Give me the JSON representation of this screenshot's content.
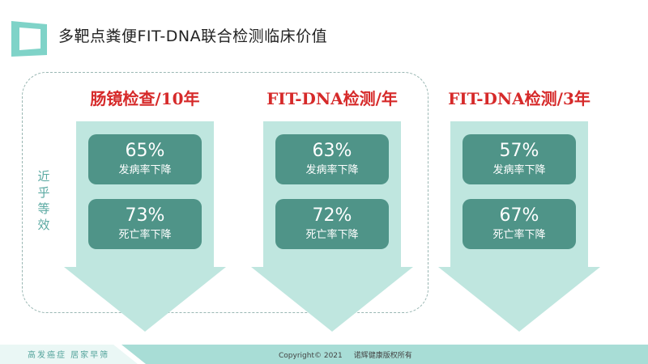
{
  "header": {
    "title": "多靶点粪便FIT-DNA联合检测临床价值"
  },
  "side_note": [
    "近",
    "乎",
    "等",
    "效"
  ],
  "columns": [
    {
      "title": "肠镜检查/10年",
      "stats": [
        {
          "value": "65%",
          "label": "发病率下降"
        },
        {
          "value": "73%",
          "label": "死亡率下降"
        }
      ]
    },
    {
      "title": "FIT-DNA检测/年",
      "stats": [
        {
          "value": "63%",
          "label": "发病率下降"
        },
        {
          "value": "72%",
          "label": "死亡率下降"
        }
      ]
    },
    {
      "title": "FIT-DNA检测/3年",
      "stats": [
        {
          "value": "57%",
          "label": "发病率下降"
        },
        {
          "value": "67%",
          "label": "死亡率下降"
        }
      ]
    }
  ],
  "footer": {
    "slogan": "高发癌症 居家早筛",
    "copyright": "Copyright© 2021",
    "owner": "诺辉健康版权所有"
  },
  "colors": {
    "accent": "#4f9488",
    "highlight": "#d62a2a",
    "arrow_fill": "#bfe6df",
    "footer": "#a8ddd6"
  }
}
